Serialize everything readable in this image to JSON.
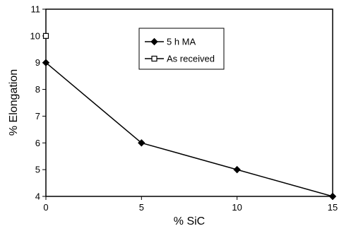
{
  "chart_data": {
    "type": "line",
    "xlabel": "% SiC",
    "ylabel": "% Elongation",
    "xlim": [
      0,
      15
    ],
    "ylim": [
      4,
      11
    ],
    "xticks": [
      0,
      5,
      10,
      15
    ],
    "yticks": [
      4,
      5,
      6,
      7,
      8,
      9,
      10,
      11
    ],
    "grid": false,
    "legend_position": "top-center",
    "series": [
      {
        "name": "5 h MA",
        "marker": "diamond-filled",
        "x": [
          0,
          5,
          10,
          15
        ],
        "y": [
          9,
          6,
          5,
          4
        ]
      },
      {
        "name": "As received",
        "marker": "square-open",
        "x": [
          0
        ],
        "y": [
          10
        ]
      }
    ]
  },
  "colors": {
    "line": "#000000",
    "background": "#ffffff"
  }
}
